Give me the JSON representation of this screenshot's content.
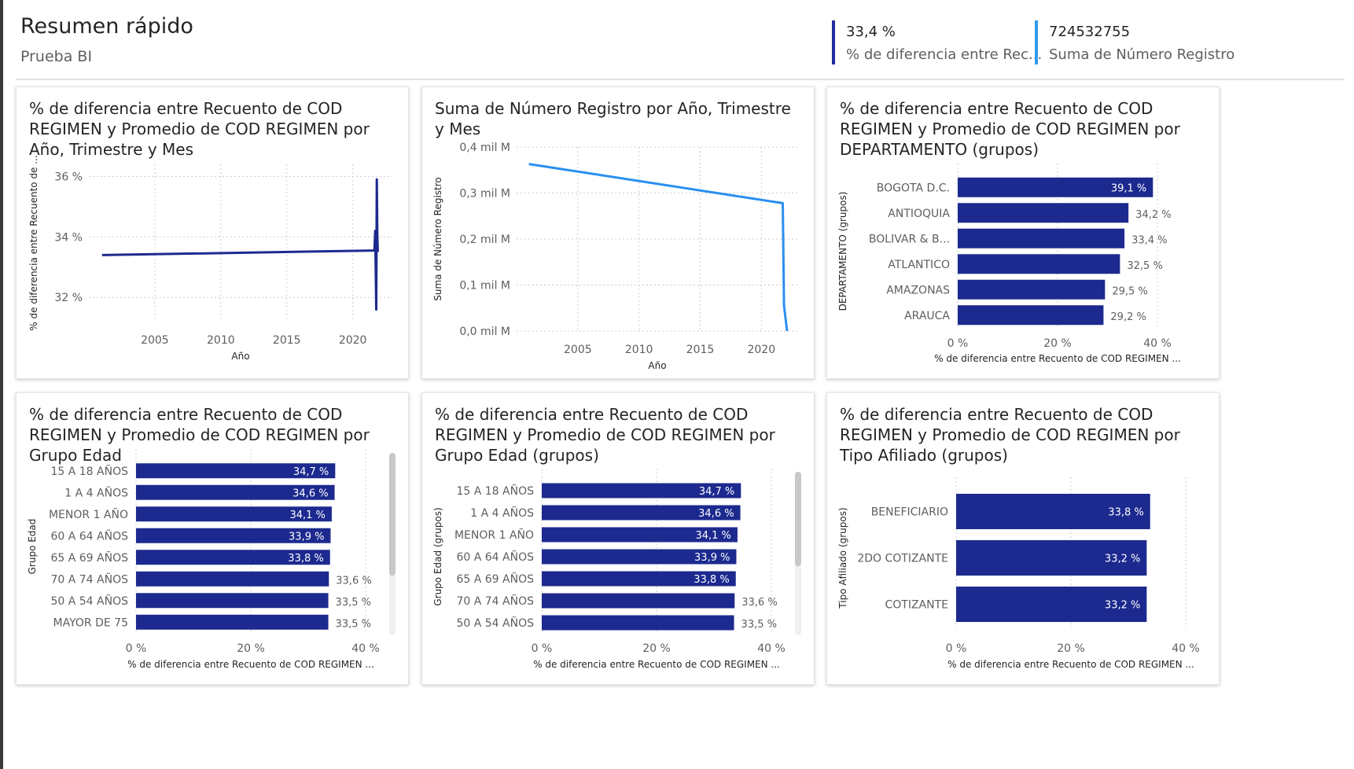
{
  "report": {
    "title": "Resumen rápido",
    "subtitle": "Prueba BI"
  },
  "kpis": [
    {
      "value": "33,4 %",
      "label": "% de diferencia entre Rec...",
      "color": "#1f2d9e"
    },
    {
      "value": "724532755",
      "label": "Suma de Número Registro",
      "color": "#3399ee"
    }
  ],
  "colors": {
    "bar": "#1c2a8f",
    "line_dark": "#1c2a8f",
    "line_light": "#2a8ff0",
    "grid": "#cccccc",
    "axis_text": "#605e5c"
  },
  "cards": {
    "line_pct": {
      "title": "% de diferencia entre Recuento de COD REGIMEN y Promedio de COD REGIMEN por Año, Trimestre y Mes"
    },
    "line_sum": {
      "title": "Suma de Número Registro por Año, Trimestre y Mes"
    },
    "bar_depto": {
      "title": "% de diferencia entre Recuento de COD REGIMEN y Promedio de COD REGIMEN por DEPARTAMENTO (grupos)"
    },
    "bar_edad": {
      "title": "% de diferencia entre Recuento de COD REGIMEN y Promedio de COD REGIMEN por Grupo Edad"
    },
    "bar_edad_grp": {
      "title": "% de diferencia entre Recuento de COD REGIMEN y Promedio de COD REGIMEN por Grupo Edad (grupos)"
    },
    "bar_afiliado": {
      "title": "% de diferencia entre Recuento de COD REGIMEN y Promedio de COD REGIMEN por Tipo Afiliado (grupos)"
    }
  },
  "chart_data": [
    {
      "id": "line_pct",
      "type": "line",
      "xlabel": "Año",
      "ylabel": "% de diferencia entre Recuento de ...",
      "xticks": [
        "2005",
        "2010",
        "2015",
        "2020"
      ],
      "xlim": [
        2000,
        2023
      ],
      "yticks": [
        "32 %",
        "34 %",
        "36 %"
      ],
      "ylim": [
        31.2,
        36.4
      ],
      "x": [
        2001,
        2021.6,
        2021.65,
        2021.7,
        2021.78,
        2021.82,
        2021.86,
        2021.9
      ],
      "values": [
        33.4,
        33.55,
        33.6,
        34.2,
        31.6,
        35.9,
        34.0,
        33.5
      ]
    },
    {
      "id": "line_sum",
      "type": "line",
      "xlabel": "Año",
      "ylabel": "Suma de Número Registro",
      "xticks": [
        "2005",
        "2010",
        "2015",
        "2020"
      ],
      "xlim": [
        2000,
        2023
      ],
      "yticks": [
        "0,0 mil M",
        "0,1 mil M",
        "0,2 mil M",
        "0,3 mil M",
        "0,4 mil M"
      ],
      "ylim": [
        0,
        0.4
      ],
      "x": [
        2001,
        2021.75,
        2021.85,
        2022.1
      ],
      "values": [
        0.363,
        0.278,
        0.055,
        0.0
      ]
    },
    {
      "id": "bar_depto",
      "type": "bar",
      "xlabel": "% de diferencia entre Recuento de COD REGIMEN ...",
      "ylabel": "DEPARTAMENTO (grupos)",
      "xticks": [
        "0 %",
        "20 %",
        "40 %"
      ],
      "xlim": [
        0,
        40
      ],
      "categories": [
        "BOGOTA D.C.",
        "ANTIOQUIA",
        "BOLIVAR & B...",
        "ATLANTICO",
        "AMAZONAS",
        "ARAUCA"
      ],
      "values": [
        39.1,
        34.2,
        33.4,
        32.5,
        29.5,
        29.2
      ],
      "labels": [
        "39,1 %",
        "34,2 %",
        "33,4 %",
        "32,5 %",
        "29,5 %",
        "29,2 %"
      ]
    },
    {
      "id": "bar_edad",
      "type": "bar",
      "xlabel": "% de diferencia entre Recuento de COD REGIMEN ...",
      "ylabel": "Grupo Edad",
      "xticks": [
        "0 %",
        "20 %",
        "40 %"
      ],
      "xlim": [
        0,
        40
      ],
      "categories": [
        "15 A 18 AÑOS",
        "1 A 4 AÑOS",
        "MENOR 1 AÑO",
        "60 A 64 AÑOS",
        "65 A 69 AÑOS",
        "70 A 74 AÑOS",
        "50 A 54 AÑOS",
        "MAYOR DE 75"
      ],
      "values": [
        34.7,
        34.6,
        34.1,
        33.9,
        33.8,
        33.6,
        33.5,
        33.5
      ],
      "labels": [
        "34,7 %",
        "34,6 %",
        "34,1 %",
        "33,9 %",
        "33,8 %",
        "33,6 %",
        "33,5 %",
        "33,5 %"
      ]
    },
    {
      "id": "bar_edad_grp",
      "type": "bar",
      "xlabel": "% de diferencia entre Recuento de COD REGIMEN ...",
      "ylabel": "Grupo Edad (grupos)",
      "xticks": [
        "0 %",
        "20 %",
        "40 %"
      ],
      "xlim": [
        0,
        40
      ],
      "categories": [
        "15 A 18 AÑOS",
        "1 A 4 AÑOS",
        "MENOR 1 AÑO",
        "60 A 64 AÑOS",
        "65 A 69 AÑOS",
        "70 A 74 AÑOS",
        "50 A 54 AÑOS"
      ],
      "values": [
        34.7,
        34.6,
        34.1,
        33.9,
        33.8,
        33.6,
        33.5
      ],
      "labels": [
        "34,7 %",
        "34,6 %",
        "34,1 %",
        "33,9 %",
        "33,8 %",
        "33,6 %",
        "33,5 %"
      ]
    },
    {
      "id": "bar_afiliado",
      "type": "bar",
      "xlabel": "% de diferencia entre Recuento de COD REGIMEN ...",
      "ylabel": "Tipo Afiliado (grupos)",
      "xticks": [
        "0 %",
        "20 %",
        "40 %"
      ],
      "xlim": [
        0,
        40
      ],
      "categories": [
        "BENEFICIARIO",
        "2DO COTIZANTE",
        "COTIZANTE"
      ],
      "values": [
        33.8,
        33.2,
        33.2
      ],
      "labels": [
        "33,8 %",
        "33,2 %",
        "33,2 %"
      ]
    }
  ]
}
